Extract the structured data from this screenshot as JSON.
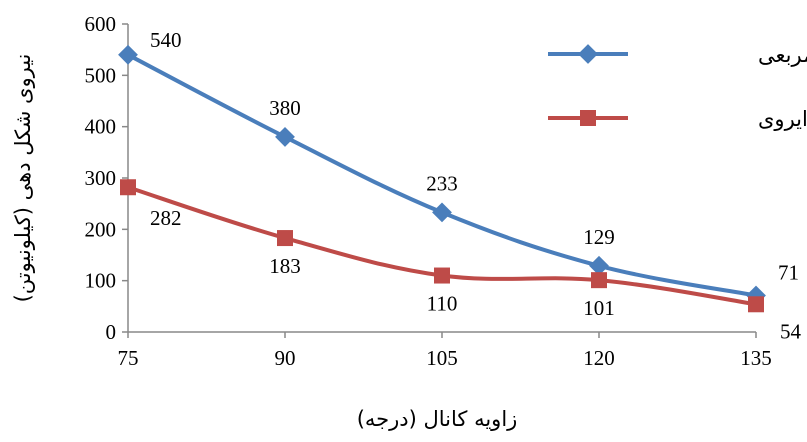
{
  "chart_data": {
    "type": "line",
    "title": "",
    "xlabel": "زاویه کانال (درجه)",
    "ylabel": "نیروی شکل دهی (کیلونیوتن)",
    "x": [
      75,
      90,
      105,
      120,
      135
    ],
    "x_tick_labels": [
      "75",
      "90",
      "105",
      "120",
      "135"
    ],
    "y_tick_labels": [
      "0",
      "100",
      "200",
      "300",
      "400",
      "500",
      "600"
    ],
    "xlim": [
      75,
      135
    ],
    "ylim": [
      0,
      600
    ],
    "grid": false,
    "legend_position": "top-right",
    "series": [
      {
        "name": "مقطع مربعی",
        "color": "#4a7ebb",
        "marker": "diamond",
        "values": [
          540,
          380,
          233,
          129,
          71
        ],
        "labels": [
          "540",
          "380",
          "233",
          "129",
          "71"
        ]
      },
      {
        "name": "مقطع دایروی",
        "color": "#be4b48",
        "marker": "square",
        "values": [
          282,
          183,
          110,
          101,
          54
        ],
        "labels": [
          "282",
          "183",
          "110",
          "101",
          "54"
        ]
      }
    ]
  }
}
